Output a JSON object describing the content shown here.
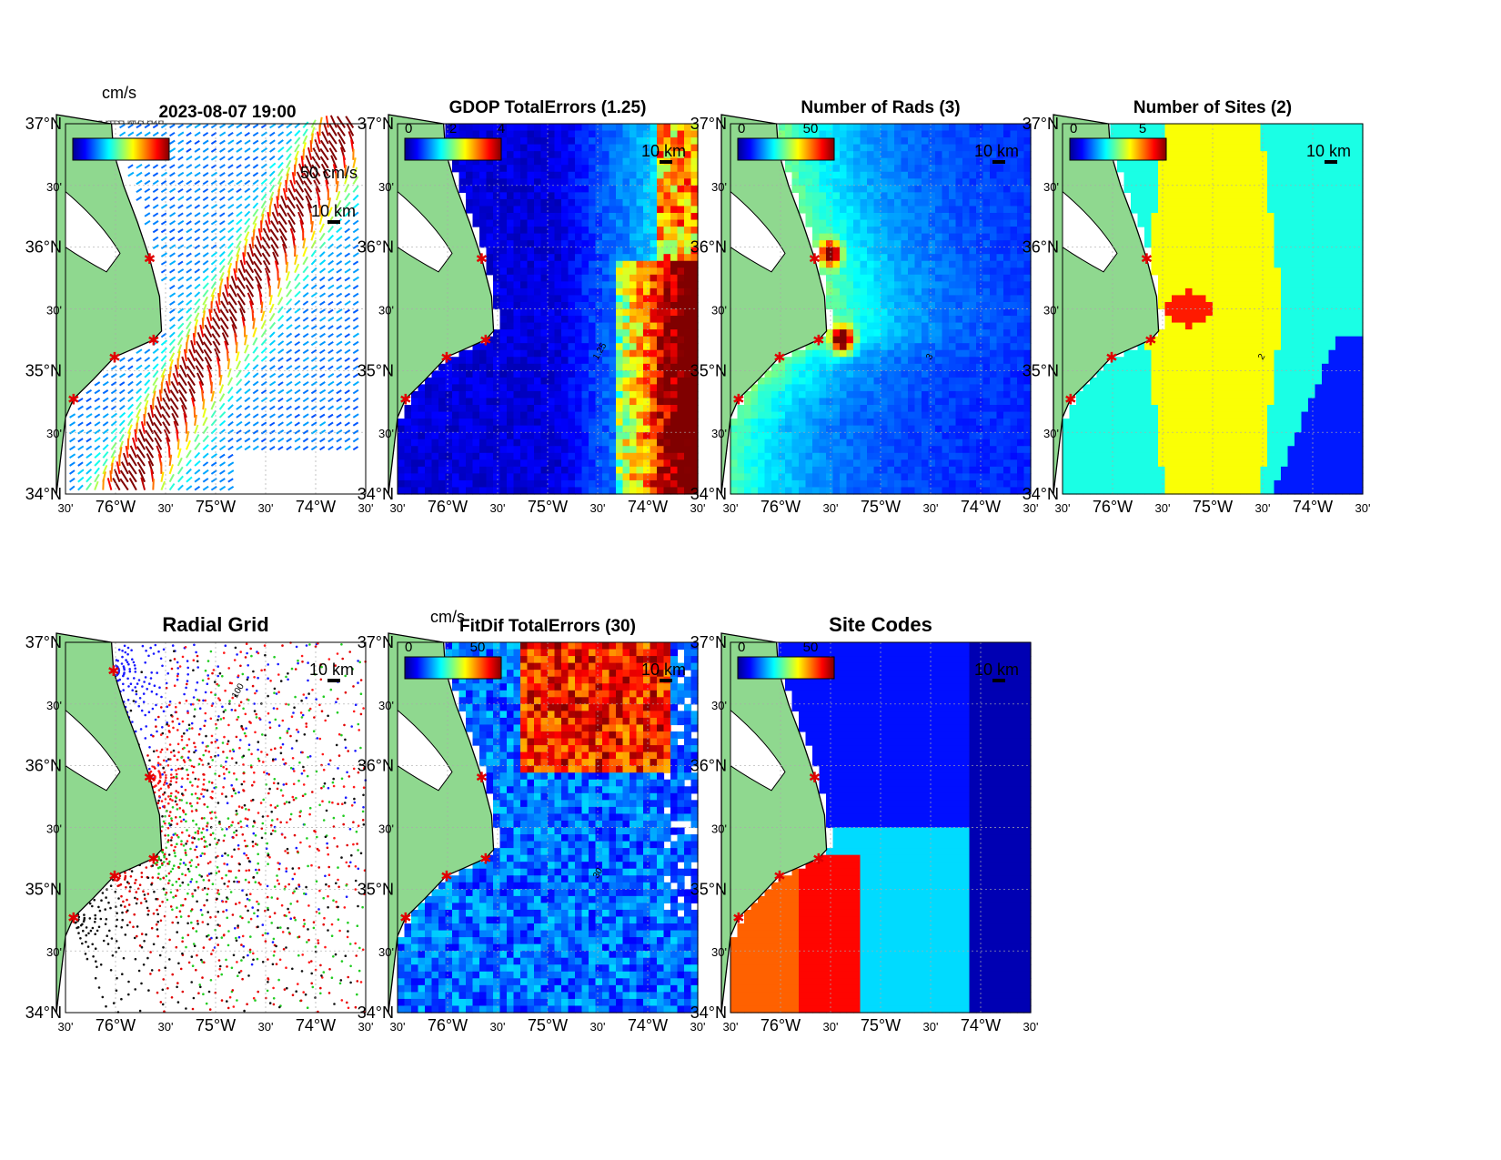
{
  "figure": {
    "timestamp": "2023-08-07 19:00",
    "stacked_labels_overlap": "OSB MRCH CEDR HATY DUCK LISL",
    "colors": {
      "land": "#8fd88f",
      "nodata": "#ffffff"
    }
  },
  "axes_labels": {
    "lat_ticks": [
      "37°N",
      "30'",
      "36°N",
      "30'",
      "35°N",
      "30'",
      "34°N"
    ],
    "lon_ticks": [
      "30'",
      "76°W",
      "30'",
      "75°W",
      "30'",
      "74°W",
      "30'"
    ]
  },
  "panels": [
    {
      "id": "vectors",
      "title": "",
      "unit_label": "cm/s",
      "cbar_ticks": [],
      "scale_label": "10 km",
      "extra_label": "50 cm/s",
      "type": "vectors"
    },
    {
      "id": "gdop",
      "title": "GDOP TotalErrors (1.25)",
      "unit_label": "",
      "cbar_ticks": [
        "0",
        "2",
        "4"
      ],
      "scale_label": "10 km",
      "type": "heat",
      "contour_label": "1.25"
    },
    {
      "id": "rads",
      "title": "Number of Rads (3)",
      "unit_label": "",
      "cbar_ticks": [
        "0",
        "50"
      ],
      "scale_label": "10 km",
      "type": "heat",
      "contour_label": "3"
    },
    {
      "id": "sites",
      "title": "Number of Sites (2)",
      "unit_label": "",
      "cbar_ticks": [
        "0",
        "5"
      ],
      "scale_label": "10 km",
      "type": "heat",
      "contour_label": "2"
    },
    {
      "id": "radial",
      "title": "Radial Grid",
      "unit_label": "",
      "cbar_ticks": [],
      "scale_label": "10 km",
      "type": "radial",
      "contour_label": "100"
    },
    {
      "id": "fitdif",
      "title": "FitDif TotalErrors (30)",
      "unit_label": "cm/s",
      "cbar_ticks": [
        "0",
        "50"
      ],
      "scale_label": "10 km",
      "type": "heat",
      "contour_label": "30"
    },
    {
      "id": "codes",
      "title": "Site Codes",
      "unit_label": "",
      "cbar_ticks": [
        "0",
        "50"
      ],
      "scale_label": "10 km",
      "type": "heat"
    }
  ],
  "chart_data": {
    "type": "heatmap",
    "lon_range": [
      -76.5,
      -73.5
    ],
    "lat_range": [
      34.0,
      37.0
    ],
    "radar_sites": [
      {
        "lon": -76.02,
        "lat": 36.77
      },
      {
        "lon": -75.66,
        "lat": 35.91
      },
      {
        "lon": -75.62,
        "lat": 35.25
      },
      {
        "lon": -76.01,
        "lat": 35.11
      },
      {
        "lon": -76.42,
        "lat": 34.77
      }
    ]
  }
}
